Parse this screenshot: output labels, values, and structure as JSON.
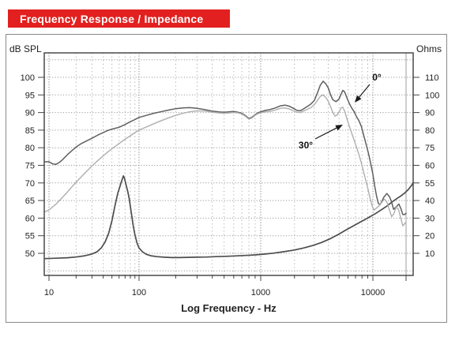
{
  "header": {
    "title": "Frequency Response / Impedance",
    "bg_color": "#e2201f",
    "text_color": "#ffffff"
  },
  "chart_data": {
    "type": "line",
    "title": "Frequency Response / Impedance",
    "xlabel": "Log Frequency - Hz",
    "x_scale": "log",
    "x_range": [
      10,
      20000
    ],
    "x_tick_labels": [
      "10",
      "100",
      "1000",
      "10000"
    ],
    "x_major_ticks": [
      10,
      100,
      1000,
      10000
    ],
    "grid": true,
    "left_axis": {
      "label": "dB SPL",
      "unit": "dB",
      "ticks": [
        100,
        95,
        90,
        85,
        80,
        75,
        70,
        65,
        60,
        55,
        50
      ]
    },
    "right_axis": {
      "label": "Ohms",
      "unit": "ohms",
      "ticks": [
        110,
        100,
        90,
        80,
        75,
        60,
        55,
        40,
        30,
        20,
        10
      ]
    },
    "annotations": [
      {
        "text": "0°",
        "target_series": "response-0deg"
      },
      {
        "text": "30°",
        "target_series": "response-30deg"
      }
    ],
    "series": [
      {
        "name": "response-0deg",
        "axis": "left",
        "color": "#5f5f5f",
        "width": 1.5,
        "points": [
          [
            9,
            76
          ],
          [
            10,
            76
          ],
          [
            11,
            75.4
          ],
          [
            12,
            75.3
          ],
          [
            13,
            75.8
          ],
          [
            14,
            76.5
          ],
          [
            16,
            78
          ],
          [
            18,
            79.2
          ],
          [
            20,
            80.2
          ],
          [
            23,
            81.2
          ],
          [
            26,
            81.9
          ],
          [
            30,
            82.7
          ],
          [
            35,
            83.6
          ],
          [
            40,
            84.3
          ],
          [
            45,
            84.9
          ],
          [
            50,
            85.3
          ],
          [
            60,
            85.8
          ],
          [
            70,
            86.6
          ],
          [
            80,
            87.4
          ],
          [
            90,
            88
          ],
          [
            100,
            88.6
          ],
          [
            115,
            89.2
          ],
          [
            130,
            89.7
          ],
          [
            150,
            90.2
          ],
          [
            175,
            90.7
          ],
          [
            200,
            91.1
          ],
          [
            230,
            91.3
          ],
          [
            260,
            91.4
          ],
          [
            300,
            91.2
          ],
          [
            350,
            90.8
          ],
          [
            400,
            90.4
          ],
          [
            450,
            90.2
          ],
          [
            500,
            90.1
          ],
          [
            550,
            90.2
          ],
          [
            600,
            90.3
          ],
          [
            650,
            90.1
          ],
          [
            700,
            89.8
          ],
          [
            750,
            89.1
          ],
          [
            800,
            88.3
          ],
          [
            850,
            88.7
          ],
          [
            900,
            89.4
          ],
          [
            950,
            89.9
          ],
          [
            1000,
            90.2
          ],
          [
            1100,
            90.6
          ],
          [
            1200,
            90.8
          ],
          [
            1350,
            91.3
          ],
          [
            1500,
            91.9
          ],
          [
            1650,
            92.1
          ],
          [
            1800,
            91.8
          ],
          [
            1950,
            91.2
          ],
          [
            2100,
            90.6
          ],
          [
            2250,
            90.5
          ],
          [
            2400,
            91
          ],
          [
            2600,
            91.7
          ],
          [
            2800,
            92.4
          ],
          [
            3000,
            93.4
          ],
          [
            3200,
            95.5
          ],
          [
            3400,
            97.8
          ],
          [
            3600,
            98.9
          ],
          [
            3800,
            98.2
          ],
          [
            4000,
            97
          ],
          [
            4200,
            95
          ],
          [
            4400,
            93.6
          ],
          [
            4700,
            93.1
          ],
          [
            5000,
            93.9
          ],
          [
            5200,
            95.2
          ],
          [
            5400,
            96.3
          ],
          [
            5600,
            95.9
          ],
          [
            5900,
            94
          ],
          [
            6200,
            92.4
          ],
          [
            6500,
            91.2
          ],
          [
            6800,
            90.3
          ],
          [
            7100,
            89
          ],
          [
            7500,
            87.7
          ],
          [
            7900,
            86
          ],
          [
            8300,
            83.4
          ],
          [
            8700,
            81
          ],
          [
            9100,
            78.6
          ],
          [
            9500,
            76
          ],
          [
            10000,
            72.5
          ],
          [
            10400,
            69
          ],
          [
            10800,
            66.2
          ],
          [
            11200,
            64.2
          ],
          [
            11600,
            63.8
          ],
          [
            12000,
            64.6
          ],
          [
            12600,
            66
          ],
          [
            13400,
            67
          ],
          [
            14200,
            66
          ],
          [
            14800,
            64.5
          ],
          [
            15400,
            62.5
          ],
          [
            16300,
            63.2
          ],
          [
            17200,
            64
          ],
          [
            18000,
            62.6
          ],
          [
            18700,
            61
          ],
          [
            19400,
            61
          ],
          [
            20000,
            61.4
          ]
        ]
      },
      {
        "name": "response-30deg",
        "axis": "left",
        "color": "#aeaeae",
        "width": 1.4,
        "points": [
          [
            9,
            61.8
          ],
          [
            10,
            62.3
          ],
          [
            11,
            63.2
          ],
          [
            12,
            64
          ],
          [
            14,
            65.8
          ],
          [
            16,
            67.4
          ],
          [
            18,
            68.9
          ],
          [
            20,
            70.2
          ],
          [
            23,
            71.8
          ],
          [
            26,
            73.2
          ],
          [
            30,
            74.8
          ],
          [
            35,
            76.4
          ],
          [
            40,
            77.7
          ],
          [
            45,
            78.8
          ],
          [
            50,
            79.7
          ],
          [
            60,
            81.2
          ],
          [
            70,
            82.4
          ],
          [
            80,
            83.4
          ],
          [
            90,
            84.3
          ],
          [
            100,
            85
          ],
          [
            115,
            85.9
          ],
          [
            130,
            86.7
          ],
          [
            150,
            87.6
          ],
          [
            175,
            88.5
          ],
          [
            200,
            89.2
          ],
          [
            230,
            89.8
          ],
          [
            260,
            90.2
          ],
          [
            300,
            90.5
          ],
          [
            350,
            90.4
          ],
          [
            400,
            90.1
          ],
          [
            450,
            89.9
          ],
          [
            500,
            89.8
          ],
          [
            550,
            89.9
          ],
          [
            600,
            90
          ],
          [
            650,
            89.9
          ],
          [
            700,
            89.6
          ],
          [
            750,
            88.9
          ],
          [
            800,
            88.1
          ],
          [
            850,
            88.5
          ],
          [
            900,
            89.2
          ],
          [
            950,
            89.7
          ],
          [
            1000,
            89.9
          ],
          [
            1100,
            90.2
          ],
          [
            1200,
            90.3
          ],
          [
            1350,
            90.7
          ],
          [
            1500,
            91.2
          ],
          [
            1650,
            91.3
          ],
          [
            1800,
            91
          ],
          [
            1950,
            90.5
          ],
          [
            2100,
            90.1
          ],
          [
            2250,
            90
          ],
          [
            2400,
            90.4
          ],
          [
            2600,
            90.9
          ],
          [
            2800,
            91.4
          ],
          [
            3000,
            92.2
          ],
          [
            3200,
            93.4
          ],
          [
            3400,
            94.6
          ],
          [
            3600,
            95
          ],
          [
            3800,
            94.3
          ],
          [
            4000,
            93.2
          ],
          [
            4200,
            91.6
          ],
          [
            4400,
            90
          ],
          [
            4600,
            89
          ],
          [
            4800,
            89.3
          ],
          [
            5000,
            90.2
          ],
          [
            5200,
            91.3
          ],
          [
            5400,
            91.5
          ],
          [
            5600,
            90.4
          ],
          [
            5900,
            88
          ],
          [
            6200,
            85.9
          ],
          [
            6500,
            84
          ],
          [
            6800,
            82.2
          ],
          [
            7100,
            80.4
          ],
          [
            7500,
            78.1
          ],
          [
            7900,
            75.6
          ],
          [
            8300,
            72.9
          ],
          [
            8700,
            70.4
          ],
          [
            9100,
            67.9
          ],
          [
            9500,
            65.4
          ],
          [
            9900,
            63.2
          ],
          [
            10300,
            62.3
          ],
          [
            10800,
            62.9
          ],
          [
            11300,
            63.4
          ],
          [
            12000,
            64.4
          ],
          [
            12700,
            65.4
          ],
          [
            13400,
            64.6
          ],
          [
            14100,
            62.4
          ],
          [
            14800,
            60.4
          ],
          [
            15500,
            61.3
          ],
          [
            16300,
            63.2
          ],
          [
            17100,
            62.4
          ],
          [
            17900,
            60
          ],
          [
            18700,
            57.8
          ],
          [
            19300,
            58.3
          ],
          [
            20000,
            58.9
          ]
        ]
      },
      {
        "name": "impedance",
        "axis": "right",
        "color": "#4d4d4d",
        "width": 1.7,
        "points": [
          [
            9,
            7
          ],
          [
            12,
            7.2
          ],
          [
            16,
            7.5
          ],
          [
            20,
            7.9
          ],
          [
            25,
            8.6
          ],
          [
            30,
            9.6
          ],
          [
            34,
            10.8
          ],
          [
            38,
            13
          ],
          [
            42,
            16.5
          ],
          [
            46,
            21.5
          ],
          [
            50,
            28.5
          ],
          [
            54,
            37
          ],
          [
            58,
            46
          ],
          [
            62,
            53
          ],
          [
            65,
            56
          ],
          [
            67,
            57
          ],
          [
            69,
            56.3
          ],
          [
            72,
            53
          ],
          [
            75,
            47.5
          ],
          [
            78,
            41
          ],
          [
            82,
            33
          ],
          [
            86,
            26
          ],
          [
            90,
            20.5
          ],
          [
            95,
            15.8
          ],
          [
            100,
            13
          ],
          [
            107,
            10.8
          ],
          [
            115,
            9.4
          ],
          [
            125,
            8.6
          ],
          [
            140,
            8.1
          ],
          [
            160,
            7.8
          ],
          [
            185,
            7.6
          ],
          [
            215,
            7.6
          ],
          [
            250,
            7.7
          ],
          [
            300,
            7.8
          ],
          [
            360,
            7.9
          ],
          [
            430,
            8.1
          ],
          [
            520,
            8.3
          ],
          [
            620,
            8.5
          ],
          [
            750,
            8.8
          ],
          [
            900,
            9.1
          ],
          [
            1100,
            9.6
          ],
          [
            1300,
            10.1
          ],
          [
            1600,
            10.9
          ],
          [
            2000,
            11.9
          ],
          [
            2400,
            13
          ],
          [
            2900,
            14.4
          ],
          [
            3500,
            16.2
          ],
          [
            4200,
            18.4
          ],
          [
            5000,
            21
          ],
          [
            5800,
            23.4
          ],
          [
            6600,
            25.4
          ],
          [
            7500,
            27.3
          ],
          [
            8500,
            29.2
          ],
          [
            9500,
            30.9
          ],
          [
            10500,
            32.5
          ],
          [
            12000,
            34.8
          ],
          [
            13500,
            37
          ],
          [
            15000,
            39.3
          ],
          [
            16500,
            41.6
          ],
          [
            18000,
            44
          ],
          [
            19500,
            46.5
          ],
          [
            21000,
            49.5
          ],
          [
            22500,
            53
          ],
          [
            23500,
            55.5
          ]
        ]
      }
    ]
  }
}
